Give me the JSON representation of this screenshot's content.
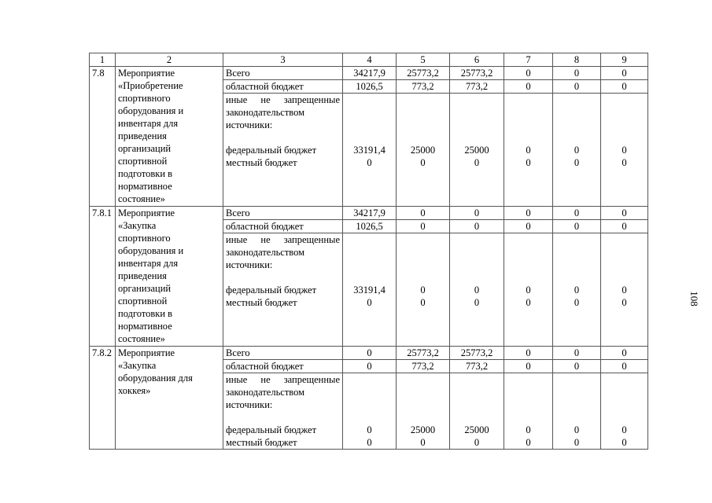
{
  "header": [
    "1",
    "2",
    "3",
    "4",
    "5",
    "6",
    "7",
    "8",
    "9"
  ],
  "labels": {
    "total": "Всего",
    "regional": "областной бюджет",
    "other": "иные не запрещенные законодательством источники:",
    "federal": "федеральный бюджет",
    "local": "местный бюджет"
  },
  "groups": [
    {
      "id": "7.8",
      "name": "Мероприятие\n«Приобретение\nспортивного\nоборудования и\nинвентаря для\nприведения\nорганизаций\nспортивной\nподготовки в\nнормативное\nсостояние»",
      "total": [
        "34217,9",
        "25773,2",
        "25773,2",
        "0",
        "0",
        "0"
      ],
      "regional": [
        "1026,5",
        "773,2",
        "773,2",
        "0",
        "0",
        "0"
      ],
      "federal": [
        "33191,4",
        "25000",
        "25000",
        "0",
        "0",
        "0"
      ],
      "local": [
        "0",
        "0",
        "0",
        "0",
        "0",
        "0"
      ]
    },
    {
      "id": "7.8.1",
      "name": "Мероприятие\n«Закупка\nспортивного\nоборудования и\nинвентаря для\nприведения\nорганизаций\nспортивной\nподготовки в\nнормативное\nсостояние»",
      "total": [
        "34217,9",
        "0",
        "0",
        "0",
        "0",
        "0"
      ],
      "regional": [
        "1026,5",
        "0",
        "0",
        "0",
        "0",
        "0"
      ],
      "federal": [
        "33191,4",
        "0",
        "0",
        "0",
        "0",
        "0"
      ],
      "local": [
        "0",
        "0",
        "0",
        "0",
        "0",
        "0"
      ]
    },
    {
      "id": "7.8.2",
      "name": "Мероприятие\n«Закупка\nоборудования для\nхоккея»",
      "total": [
        "0",
        "25773,2",
        "25773,2",
        "0",
        "0",
        "0"
      ],
      "regional": [
        "0",
        "773,2",
        "773,2",
        "0",
        "0",
        "0"
      ],
      "federal": [
        "0",
        "25000",
        "25000",
        "0",
        "0",
        "0"
      ],
      "local": [
        "0",
        "0",
        "0",
        "0",
        "0",
        "0"
      ]
    }
  ],
  "page_number": "108"
}
